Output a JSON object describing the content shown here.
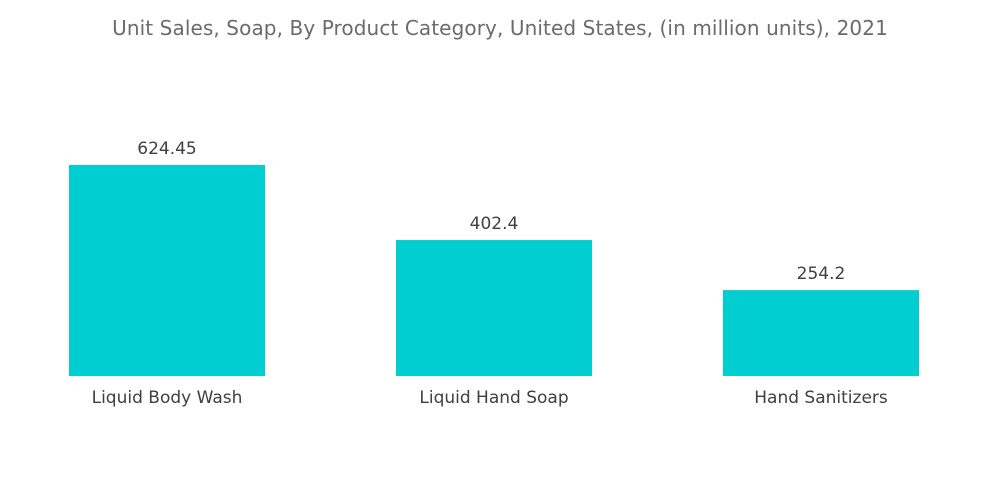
{
  "chart_data": {
    "type": "bar",
    "title": "Unit Sales, Soap, By Product Category, United States, (in million units), 2021",
    "categories": [
      "Liquid Body Wash",
      "Liquid Hand Soap",
      "Hand Sanitizers"
    ],
    "values": [
      624.45,
      402.4,
      254.2
    ],
    "value_labels": [
      "624.45",
      "402.4",
      "254.2"
    ],
    "xlabel": "",
    "ylabel": "",
    "ylim": [
      0,
      624.45
    ],
    "grid": false,
    "legend": "none",
    "colors": {
      "bar": "#00CED1"
    }
  }
}
